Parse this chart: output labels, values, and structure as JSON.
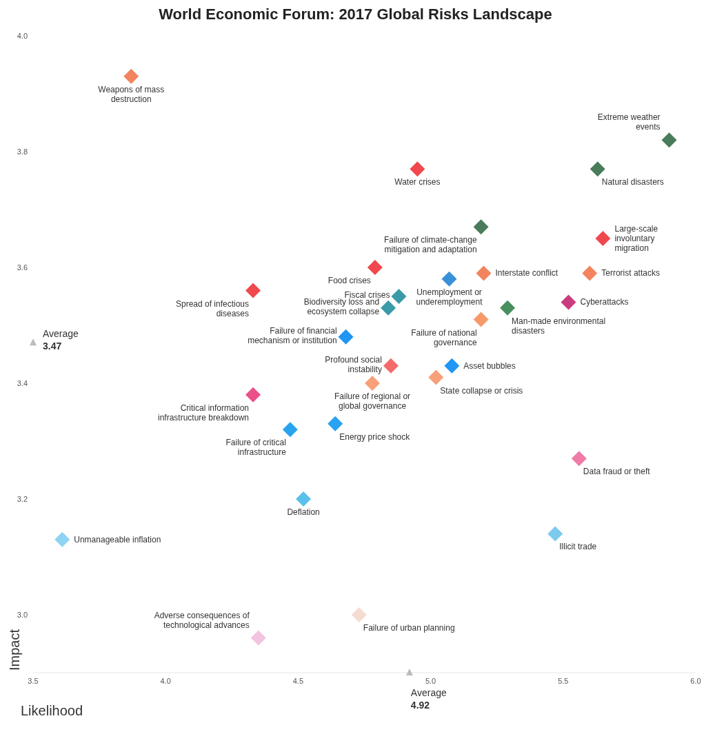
{
  "chart_data": {
    "type": "scatter",
    "title": "World Economic Forum: 2017 Global Risks Landscape",
    "xlabel": "Likelihood",
    "ylabel": "Impact",
    "xlim": [
      3.5,
      6.0
    ],
    "xticks": [
      3.5,
      {
        "value": 4,
        "label": "4.0"
      },
      4.5,
      {
        "value": 5,
        "label": "5.0"
      },
      5.5,
      {
        "value": 6,
        "label": "6.0"
      }
    ],
    "ylim": [
      2.9,
      4.0
    ],
    "yticks": [
      {
        "value": 3,
        "label": "3.0"
      },
      3.2,
      3.4,
      3.6,
      3.8,
      {
        "value": 4,
        "label": "4.0"
      }
    ],
    "grid": false,
    "legend": false,
    "marker": "diamond",
    "annotations": [
      {
        "text": "Average 3.47",
        "x": 3.5,
        "y": 3.47
      },
      {
        "text": "Average 4.92",
        "x": 4.92,
        "y": 2.9
      }
    ],
    "series": [
      {
        "name": "Weapons of mass destruction",
        "color": "#f4845f",
        "x": [
          3.87
        ],
        "values": [
          3.93
        ]
      },
      {
        "name": "Extreme weather events",
        "color": "#4a7c59",
        "x": [
          5.9
        ],
        "values": [
          3.82
        ]
      },
      {
        "name": "Natural disasters",
        "color": "#4a7c59",
        "x": [
          5.63
        ],
        "values": [
          3.77
        ]
      },
      {
        "name": "Water crises",
        "color": "#f0484e",
        "x": [
          4.95
        ],
        "values": [
          3.77
        ]
      },
      {
        "name": "Failure of climate-change mitigation and adaptation",
        "color": "#4a7c59",
        "x": [
          5.19
        ],
        "values": [
          3.67
        ]
      },
      {
        "name": "Large-scale involuntary migration",
        "color": "#f0484e",
        "x": [
          5.65
        ],
        "values": [
          3.65
        ]
      },
      {
        "name": "Terrorist attacks",
        "color": "#f4845f",
        "x": [
          5.6
        ],
        "values": [
          3.59
        ]
      },
      {
        "name": "Interstate conflict",
        "color": "#f4845f",
        "x": [
          5.2
        ],
        "values": [
          3.59
        ]
      },
      {
        "name": "Food crises",
        "color": "#f0484e",
        "x": [
          4.79
        ],
        "values": [
          3.6
        ]
      },
      {
        "name": "Unemployment or underemployment",
        "color": "#3a8fd9",
        "x": [
          5.07
        ],
        "values": [
          3.58
        ]
      },
      {
        "name": "Spread of infectious diseases",
        "color": "#f0484e",
        "x": [
          4.33
        ],
        "values": [
          3.56
        ]
      },
      {
        "name": "Fiscal crises",
        "color": "#3a9aa8",
        "x": [
          4.88
        ],
        "values": [
          3.55
        ]
      },
      {
        "name": "Cyberattacks",
        "color": "#c93c7f",
        "x": [
          5.52
        ],
        "values": [
          3.54
        ]
      },
      {
        "name": "Biodiversity loss and ecosystem collapse",
        "color": "#3a9aa8",
        "x": [
          4.84
        ],
        "values": [
          3.53
        ]
      },
      {
        "name": "Man-made environmental disasters",
        "color": "#4a8f5f",
        "x": [
          5.29
        ],
        "values": [
          3.53
        ]
      },
      {
        "name": "Failure of national governance",
        "color": "#f79a6a",
        "x": [
          5.19
        ],
        "values": [
          3.51
        ]
      },
      {
        "name": "Failure of financial mechanism or institution",
        "color": "#2196f3",
        "x": [
          4.68
        ],
        "values": [
          3.48
        ]
      },
      {
        "name": "Asset bubbles",
        "color": "#2196f3",
        "x": [
          5.08
        ],
        "values": [
          3.43
        ]
      },
      {
        "name": "Profound social instability",
        "color": "#f46a6a",
        "x": [
          4.85
        ],
        "values": [
          3.43
        ]
      },
      {
        "name": "State collapse or crisis",
        "color": "#f7a07a",
        "x": [
          5.02
        ],
        "values": [
          3.41
        ]
      },
      {
        "name": "Failure of regional or global governance",
        "color": "#f7a07a",
        "x": [
          4.78
        ],
        "values": [
          3.4
        ]
      },
      {
        "name": "Critical information infrastructure breakdown",
        "color": "#ec4f8a",
        "x": [
          4.33
        ],
        "values": [
          3.38
        ]
      },
      {
        "name": "Energy price shock",
        "color": "#29a3f0",
        "x": [
          4.64
        ],
        "values": [
          3.33
        ]
      },
      {
        "name": "Failure of critical infrastructure",
        "color": "#29a3f0",
        "x": [
          4.47
        ],
        "values": [
          3.32
        ]
      },
      {
        "name": "Data fraud or theft",
        "color": "#f07aa8",
        "x": [
          5.56
        ],
        "values": [
          3.27
        ]
      },
      {
        "name": "Deflation",
        "color": "#5bc0eb",
        "x": [
          4.52
        ],
        "values": [
          3.2
        ]
      },
      {
        "name": "Illicit trade",
        "color": "#7ccbef",
        "x": [
          5.47
        ],
        "values": [
          3.14
        ]
      },
      {
        "name": "Unmanageable inflation",
        "color": "#8dd3f2",
        "x": [
          3.61
        ],
        "values": [
          3.13
        ]
      },
      {
        "name": "Failure of urban planning",
        "color": "#f5dcd0",
        "x": [
          4.73
        ],
        "values": [
          3.0
        ]
      },
      {
        "name": "Adverse consequences of technological advances",
        "color": "#f2c4e0",
        "x": [
          4.35
        ],
        "values": [
          2.96
        ]
      }
    ]
  }
}
